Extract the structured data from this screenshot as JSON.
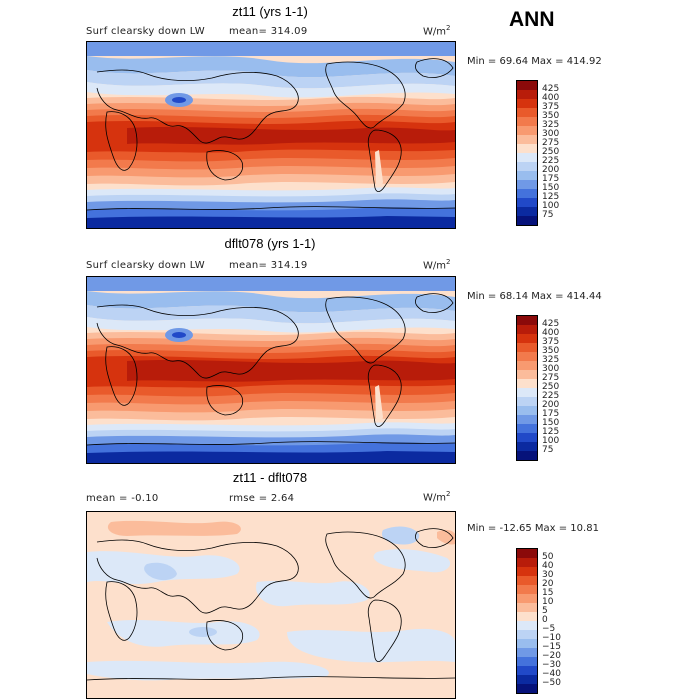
{
  "season_label": "ANN",
  "units_label": "W/m",
  "units_sup": "2",
  "panels": [
    {
      "title": "zt11 (yrs 1-1)",
      "left_label": "Surf clearsky down LW",
      "stat_label": "mean= 314.09",
      "minmax_label": "Min =  69.64 Max = 414.92",
      "levels": [
        "425",
        "400",
        "375",
        "350",
        "325",
        "300",
        "275",
        "250",
        "225",
        "200",
        "175",
        "150",
        "125",
        "100",
        "75"
      ],
      "colors": [
        "#8b0a0a",
        "#b81c0a",
        "#d6330e",
        "#e95a2b",
        "#f27a4c",
        "#f89a70",
        "#fbbc9b",
        "#fde0cc",
        "#dce8f8",
        "#bcd3f4",
        "#99bdee",
        "#7099e6",
        "#4472dc",
        "#2149c8",
        "#0b2aa0",
        "#06127a"
      ]
    },
    {
      "title": "dflt078 (yrs 1-1)",
      "left_label": "Surf clearsky down LW",
      "stat_label": "mean= 314.19",
      "minmax_label": "Min =  68.14 Max = 414.44",
      "levels": [
        "425",
        "400",
        "375",
        "350",
        "325",
        "300",
        "275",
        "250",
        "225",
        "200",
        "175",
        "150",
        "125",
        "100",
        "75"
      ],
      "colors": [
        "#8b0a0a",
        "#b81c0a",
        "#d6330e",
        "#e95a2b",
        "#f27a4c",
        "#f89a70",
        "#fbbc9b",
        "#fde0cc",
        "#dce8f8",
        "#bcd3f4",
        "#99bdee",
        "#7099e6",
        "#4472dc",
        "#2149c8",
        "#0b2aa0",
        "#06127a"
      ]
    },
    {
      "title": "zt11 - dflt078",
      "left_label": "mean =   -0.10",
      "stat_label": "rmse =    2.64",
      "minmax_label": "Min = -12.65 Max =   10.81",
      "levels": [
        "50",
        "40",
        "30",
        "20",
        "15",
        "10",
        "5",
        "0",
        "−5",
        "−10",
        "−15",
        "−20",
        "−30",
        "−40",
        "−50"
      ],
      "colors": [
        "#8b0a0a",
        "#b81c0a",
        "#d6330e",
        "#e95a2b",
        "#f27a4c",
        "#f89a70",
        "#fbbc9b",
        "#fde0cc",
        "#dce8f8",
        "#bcd3f4",
        "#99bdee",
        "#7099e6",
        "#4472dc",
        "#2149c8",
        "#0b2aa0",
        "#06127a"
      ]
    }
  ]
}
